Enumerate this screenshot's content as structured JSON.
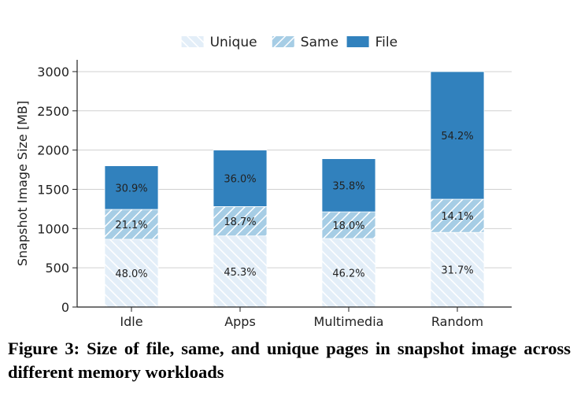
{
  "caption": "Figure 3: Size of file, same, and unique pages in snapshot image across different memory workloads",
  "chart_data": {
    "type": "bar",
    "stacked": true,
    "categories": [
      "Idle",
      "Apps",
      "Multimedia",
      "Random"
    ],
    "ylabel": "Snapshot Image Size [MB]",
    "ylim": [
      0,
      3150
    ],
    "yticks": [
      0,
      500,
      1000,
      1500,
      2000,
      2500,
      3000
    ],
    "grid": "horizontal",
    "legend_position": "top-center",
    "series": [
      {
        "name": "Unique",
        "values": [
          864,
          906,
          873,
          951
        ],
        "labels": [
          "48.0%",
          "45.3%",
          "46.2%",
          "31.7%"
        ],
        "color": "#e3eef8",
        "hatch": "//"
      },
      {
        "name": "Same",
        "values": [
          380,
          374,
          340,
          423
        ],
        "labels": [
          "21.1%",
          "18.7%",
          "18.0%",
          "14.1%"
        ],
        "color": "#a6cde5",
        "hatch": "\\\\"
      },
      {
        "name": "File",
        "values": [
          556,
          720,
          677,
          1626
        ],
        "labels": [
          "30.9%",
          "36.0%",
          "35.8%",
          "54.2%"
        ],
        "color": "#3181bd",
        "hatch": ""
      }
    ]
  }
}
